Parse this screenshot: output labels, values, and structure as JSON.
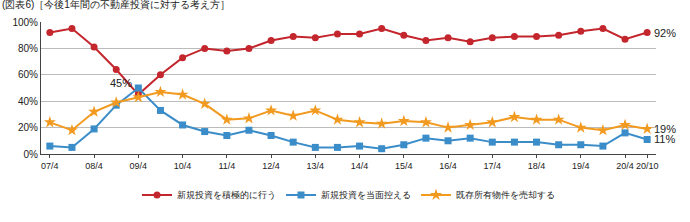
{
  "chart_data": {
    "type": "line",
    "title": "(図表6)［今後1年間の不動産投資に対する考え方］",
    "categories": [
      "07/4",
      null,
      "08/4",
      null,
      "09/4",
      null,
      "10/4",
      null,
      "11/4",
      null,
      "12/4",
      null,
      "13/4",
      null,
      "14/4",
      null,
      "15/4",
      null,
      "16/4",
      null,
      "17/4",
      null,
      "18/4",
      null,
      "19/4",
      null,
      "20/4",
      "20/10"
    ],
    "series": [
      {
        "name": "新規投資を積極的に行う",
        "color": "#c4262e",
        "marker": "circle",
        "values": [
          92,
          95,
          81,
          64,
          45,
          60,
          73,
          80,
          78,
          80,
          86,
          89,
          88,
          91,
          91,
          95,
          90,
          86,
          88,
          85,
          88,
          89,
          89,
          90,
          93,
          95,
          87,
          92
        ]
      },
      {
        "name": "新規投資を当面控える",
        "color": "#3a8dc8",
        "marker": "square",
        "values": [
          6,
          5,
          19,
          37,
          50,
          33,
          22,
          17,
          14,
          18,
          14,
          9,
          5,
          5,
          6,
          4,
          7,
          12,
          10,
          12,
          9,
          9,
          9,
          7,
          7,
          6,
          16,
          11
        ]
      },
      {
        "name": "既存所有物件を売却する",
        "color": "#f29a1f",
        "marker": "star",
        "values": [
          24,
          18,
          32,
          39,
          43,
          47,
          45,
          38,
          26,
          27,
          33,
          29,
          33,
          26,
          24,
          23,
          25,
          24,
          20,
          22,
          24,
          28,
          26,
          26,
          20,
          18,
          22,
          19
        ]
      }
    ],
    "annotations": [
      {
        "text": "45%",
        "x": "09/4",
        "y": 45
      },
      {
        "text": "92%",
        "x": "20/10",
        "y": 92
      },
      {
        "text": "19%",
        "x": "20/10",
        "y": 19
      },
      {
        "text": "11%",
        "x": "20/10",
        "y": 11
      }
    ],
    "ylim": [
      0,
      100
    ],
    "yticks": [
      {
        "value": 0,
        "label": "0%"
      },
      {
        "value": 20,
        "label": "20%"
      },
      {
        "value": 40,
        "label": "40%"
      },
      {
        "value": 60,
        "label": "60%"
      },
      {
        "value": 80,
        "label": "80%"
      },
      {
        "value": 100,
        "label": "100%"
      }
    ],
    "grid": true,
    "legend": "bottom"
  }
}
